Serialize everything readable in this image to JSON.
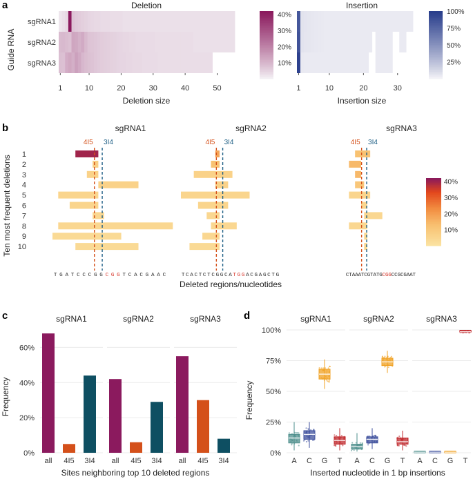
{
  "chart_data": [
    {
      "panel": "a",
      "type": "heatmap",
      "title": "Deletion",
      "ylabel": "Guide RNA",
      "xlabel": "Deletion size",
      "rows": [
        "sgRNA1",
        "sgRNA2",
        "sgRNA3"
      ],
      "xticks": [
        1,
        10,
        20,
        30,
        40,
        50
      ],
      "legend_ticks": [
        "40%",
        "30%",
        "20%",
        "10%"
      ],
      "color_low": "#f2eef3",
      "color_high": "#8b1a5e",
      "values": [
        [
          0.1,
          0.3,
          0.6,
          40,
          2.2,
          1.7,
          1.4,
          1.2,
          1.0,
          0.8,
          0.7,
          0.6,
          0.6,
          0.5,
          0.5,
          0.5,
          0.4,
          0.4,
          0.4,
          0.4,
          0.3,
          0.3,
          0.3,
          0.3,
          0.3,
          0.3,
          0.3,
          0.3,
          0.3,
          0.3,
          0.3,
          0.3,
          0.3,
          0.3,
          0.3,
          0.3,
          0.3,
          0.3,
          0.3,
          0.3,
          0.3,
          0.3,
          0.3,
          0.3,
          0.3,
          0.3,
          0.3,
          0.3,
          0.3,
          0.3,
          0.3,
          0.3,
          0.3,
          0.3,
          0.3
        ],
        [
          3.0,
          3.2,
          2.8,
          2.4,
          5.6,
          5.2,
          4.2,
          5.0,
          3.2,
          2.2,
          2.0,
          1.8,
          1.6,
          1.4,
          1.3,
          1.2,
          1.1,
          1.0,
          0.9,
          0.8,
          0.7,
          0.7,
          0.6,
          0.6,
          0.5,
          0.5,
          0.5,
          0.5,
          0.5,
          0.5,
          0.4,
          0.4,
          0.4,
          0.4,
          0.4,
          0.4,
          0.4,
          0.4,
          0.4,
          0.4,
          0.4,
          0.4,
          0.3,
          0.3,
          0.3,
          0.3,
          0.3,
          0.3,
          0.3,
          0.3,
          0.3,
          0.3,
          0.3,
          0.3,
          0.3
        ],
        [
          2.6,
          2.5,
          4.6,
          5.4,
          4.4,
          6.4,
          5.0,
          3.4,
          2.8,
          2.4,
          2.2,
          1.8,
          1.6,
          1.4,
          1.3,
          1.2,
          1.1,
          1.0,
          0.9,
          0.8,
          0.8,
          0.7,
          0.7,
          0.6,
          0.6,
          0.6,
          0.5,
          0.5,
          0.5,
          0.5,
          0.5,
          0.4,
          0.4,
          0.4,
          0.4,
          0.4,
          0.4,
          0.4,
          0.4,
          0.4,
          0.4,
          0.4,
          0.4,
          0.4,
          0.4,
          0.4,
          0.4,
          0.4,
          null,
          null,
          null,
          null,
          null,
          null,
          null
        ]
      ]
    },
    {
      "panel": "a",
      "type": "heatmap",
      "title": "Insertion",
      "xlabel": "Insertion size",
      "xticks": [
        1,
        10,
        20,
        30
      ],
      "legend_ticks": [
        "100%",
        "75%",
        "50%",
        "25%"
      ],
      "color_low": "#f2f1f6",
      "color_high": "#293e8c",
      "values": [
        [
          78,
          1.5,
          1.2,
          1.0,
          0.8,
          0.7,
          0.6,
          0.6,
          0.5,
          0.5,
          0.5,
          0.5,
          0.5,
          0.5,
          0.5,
          0.5,
          0.5,
          0.5,
          0.5,
          0.5,
          0.5,
          0.5,
          0.5,
          0.5,
          0.5,
          0.5,
          0.5,
          0.5,
          0.5,
          0.5,
          0.5,
          0.5,
          0.5,
          0.5
        ],
        [
          82,
          1.4,
          1.1,
          1.0,
          0.8,
          0.7,
          0.6,
          0.6,
          0.5,
          0.5,
          0.5,
          0.5,
          0.5,
          0.5,
          0.5,
          0.5,
          0.5,
          0.5,
          0.5,
          0.5,
          0.5,
          0.5,
          null,
          0.5,
          0.5,
          0.5,
          0.5,
          0.5,
          null,
          null,
          0.5,
          0.5,
          null,
          null
        ],
        [
          97,
          0.6,
          0.5,
          0.5,
          0.5,
          0.5,
          0.5,
          0.5,
          0.5,
          0.5,
          0.5,
          0.5,
          0.5,
          0.5,
          0.5,
          0.5,
          0.5,
          0.5,
          0.5,
          0.5,
          0.5,
          null,
          null,
          0.5,
          0.5,
          0.5,
          0.5,
          0.5,
          null,
          null,
          null,
          null,
          null,
          null
        ]
      ]
    },
    {
      "panel": "b",
      "type": "bar",
      "ylabel": "Ten most frequent deletions",
      "xlabel": "Deleted regions/nucleotides",
      "rows": [
        "1",
        "2",
        "3",
        "4",
        "5",
        "6",
        "7",
        "8",
        "9",
        "10"
      ],
      "legend_ticks": [
        "40%",
        "30%",
        "20%",
        "10%"
      ],
      "cut_labels": [
        "4I5",
        "3I4"
      ],
      "cut_colors": [
        "#d4501a",
        "#1e5f85"
      ],
      "guides": [
        {
          "name": "sgRNA1",
          "pre": "TGATCCCGG",
          "pam": "CGG",
          "post": "TCACGAAC",
          "cut_a": 7.5,
          "cut_b": 8.5,
          "deletions": [
            [
              4,
              8,
              40
            ],
            [
              7,
              8,
              7
            ],
            [
              6,
              8,
              6
            ],
            [
              8,
              15,
              6
            ],
            [
              1,
              8,
              5
            ],
            [
              3,
              8,
              5
            ],
            [
              7,
              9,
              4
            ],
            [
              1,
              21,
              4
            ],
            [
              0,
              12,
              3
            ],
            [
              4,
              15,
              3
            ]
          ]
        },
        {
          "name": "sgRNA2",
          "pre": "TCACTCTCGGCA",
          "pam": "TGG",
          "post": "ACGAGCTG",
          "cut_a": 8.5,
          "cut_b": 9.5,
          "deletions": [
            [
              8,
              9,
              18
            ],
            [
              7,
              9,
              12
            ],
            [
              3,
              12,
              6
            ],
            [
              8,
              11,
              6
            ],
            [
              0,
              16,
              5
            ],
            [
              4,
              11,
              5
            ],
            [
              6,
              9,
              4
            ],
            [
              7,
              13,
              4
            ],
            [
              5,
              9,
              4
            ],
            [
              2,
              9,
              3
            ]
          ]
        },
        {
          "name": "sgRNA3",
          "pre": "CTAAATCGTATG",
          "pam": "CGG",
          "post": "CCGCGAAT",
          "cut_a": 5.5,
          "cut_b": 6.5,
          "deletions": [
            [
              3,
              8,
              12
            ],
            [
              1,
              5,
              14
            ],
            [
              3,
              5,
              14
            ],
            [
              3,
              6,
              10
            ],
            [
              1,
              8,
              5
            ],
            [
              5,
              7,
              4
            ],
            [
              6,
              12,
              4
            ],
            [
              1,
              7,
              4
            ],
            [
              6,
              7,
              4
            ],
            [
              6,
              7,
              4
            ]
          ]
        }
      ]
    },
    {
      "panel": "c",
      "type": "bar",
      "ylabel": "Frequency",
      "xlabel": "Sites neighboring top 10 deleted regions",
      "categories": [
        "all",
        "4I5",
        "3I4"
      ],
      "yticks": [
        "0%",
        "20%",
        "40%",
        "60%"
      ],
      "ylim": [
        0,
        70
      ],
      "colors": [
        "#8b1a5e",
        "#d4501a",
        "#0e4f62"
      ],
      "groups": [
        {
          "name": "sgRNA1",
          "values": [
            68,
            5,
            44
          ]
        },
        {
          "name": "sgRNA2",
          "values": [
            42,
            6,
            29
          ]
        },
        {
          "name": "sgRNA3",
          "values": [
            55,
            30,
            8
          ]
        }
      ]
    },
    {
      "panel": "d",
      "type": "scatter",
      "ylabel": "Frequency",
      "xlabel": "Inserted nucleotide in 1 bp insertions",
      "categories": [
        "A",
        "C",
        "G",
        "T"
      ],
      "yticks": [
        "0%",
        "25%",
        "50%",
        "75%",
        "100%"
      ],
      "ylim": [
        0,
        100
      ],
      "colors": [
        "#4e8f8c",
        "#3d4f9c",
        "#f0a020",
        "#c0282c"
      ],
      "groups": [
        {
          "name": "sgRNA1",
          "median": [
            12,
            15,
            64,
            10
          ],
          "q1": [
            8,
            11,
            60,
            7
          ],
          "q3": [
            15,
            18,
            68,
            13
          ],
          "lo": [
            2,
            4,
            52,
            2
          ],
          "hi": [
            25,
            25,
            76,
            20
          ]
        },
        {
          "name": "sgRNA2",
          "median": [
            5,
            11,
            74,
            9
          ],
          "q1": [
            3,
            8,
            71,
            7
          ],
          "q3": [
            7,
            13,
            77,
            12
          ],
          "lo": [
            1,
            3,
            65,
            2
          ],
          "hi": [
            16,
            20,
            83,
            18
          ]
        },
        {
          "name": "sgRNA3",
          "median": [
            0.5,
            0.5,
            0.5,
            98.5
          ],
          "q1": [
            0.3,
            0.3,
            0.3,
            98
          ],
          "q3": [
            0.7,
            0.7,
            0.7,
            99
          ],
          "lo": [
            0,
            0,
            0,
            97.5
          ],
          "hi": [
            1,
            1,
            1,
            99.5
          ]
        }
      ]
    }
  ]
}
